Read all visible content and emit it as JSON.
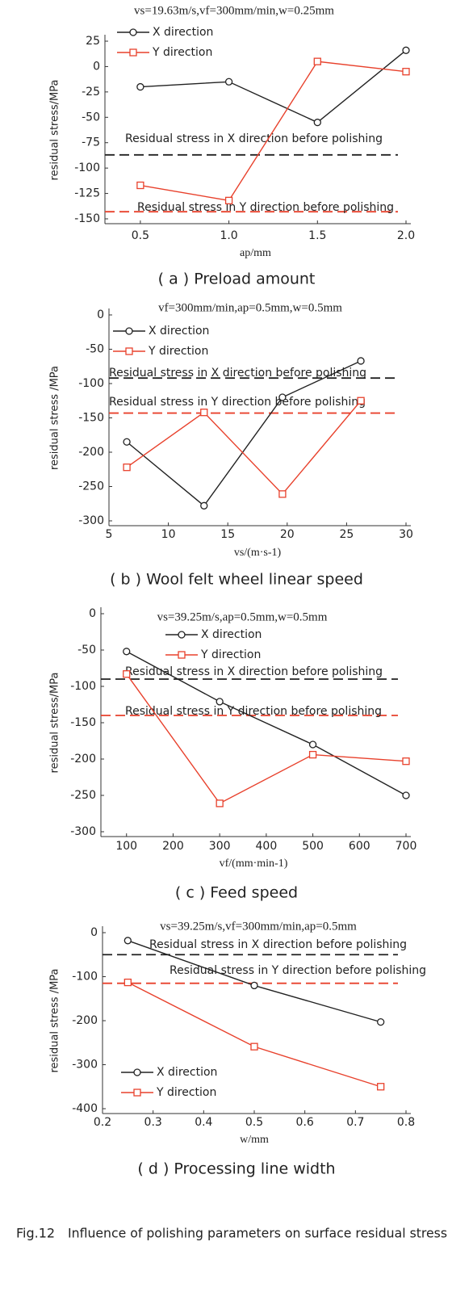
{
  "chart_data": [
    {
      "type": "line",
      "title": "vs=19.63m/s,vf=300mm/min,w=0.25mm",
      "x_label": "ap/mm",
      "y_label": "residual stress/MPa",
      "caption": "( a ) Preload amount",
      "x": [
        0.5,
        1,
        1.5,
        2
      ],
      "xlim": [
        0.3,
        2.0
      ],
      "xticks": [
        0.5,
        {
          "value": 1,
          "label": "1.0"
        },
        1.5,
        {
          "value": 2,
          "label": "2.0"
        }
      ],
      "ylim": [
        -150,
        25
      ],
      "yticks": [
        25,
        0,
        -25,
        -50,
        -75,
        -100,
        -125,
        -150
      ],
      "legend": "upper left",
      "series": [
        {
          "name": "X direction",
          "color": "#222222",
          "marker": "circle",
          "values": [
            -20,
            -15,
            -55,
            16
          ]
        },
        {
          "name": "Y direction",
          "color": "#e8412c",
          "marker": "square",
          "values": [
            -117,
            -132,
            5,
            -5
          ]
        }
      ],
      "reference_lines": [
        {
          "label": "Residual stress in X direction before polishing",
          "value": -87,
          "color": "#222222"
        },
        {
          "label": "Residual stress in Y direction before polishing",
          "value": -143,
          "color": "#e8412c"
        }
      ]
    },
    {
      "type": "line",
      "title": "vf=300mm/min,ap=0.5mm,w=0.5mm",
      "x_label": "vs/(m·s-1)",
      "y_label": "residual stress /MPa",
      "caption": "( b ) Wool felt wheel linear speed",
      "x": [
        6.5,
        13,
        19.6,
        26.2
      ],
      "xlim": [
        5,
        30
      ],
      "xticks": [
        5,
        10,
        15,
        20,
        25,
        30
      ],
      "ylim": [
        -300,
        0
      ],
      "yticks": [
        0,
        -50,
        -100,
        -150,
        -200,
        -250,
        -300
      ],
      "legend": "upper left",
      "series": [
        {
          "name": "X direction",
          "color": "#222222",
          "marker": "circle",
          "values": [
            -185,
            -278,
            -120,
            -67
          ]
        },
        {
          "name": "Y direction",
          "color": "#e8412c",
          "marker": "square",
          "values": [
            -222,
            -142,
            -261,
            -125
          ]
        }
      ],
      "reference_lines": [
        {
          "label": "Residual stress in X direction before polishing",
          "value": -92,
          "color": "#222222"
        },
        {
          "label": "Residual stress in Y direction before polishing",
          "value": -143,
          "color": "#e8412c"
        }
      ]
    },
    {
      "type": "line",
      "title": "vs=39.25m/s,ap=0.5mm,w=0.5mm",
      "x_label": "vf/(mm·min-1)",
      "y_label": "residual stress/MPa",
      "caption": "( c ) Feed speed",
      "x": [
        100,
        300,
        500,
        700
      ],
      "xlim": [
        45,
        700
      ],
      "xticks": [
        100,
        200,
        300,
        400,
        500,
        600,
        700
      ],
      "ylim": [
        -300,
        0
      ],
      "yticks": [
        0,
        -50,
        -100,
        -150,
        -200,
        -250,
        -300
      ],
      "legend": "upper center",
      "series": [
        {
          "name": "X direction",
          "color": "#222222",
          "marker": "circle",
          "values": [
            -52,
            -121,
            -180,
            -250
          ]
        },
        {
          "name": "Y direction",
          "color": "#e8412c",
          "marker": "square",
          "values": [
            -83,
            -261,
            -194,
            -203
          ]
        }
      ],
      "reference_lines": [
        {
          "label": "Residual stress in X direction before polishing",
          "value": -90,
          "color": "#222222"
        },
        {
          "label": "Residual stress in Y direction before polishing",
          "value": -140,
          "color": "#e8412c"
        }
      ]
    },
    {
      "type": "line",
      "title": "vs=39.25m/s,vf=300mm/min,ap=0.5mm",
      "x_label": "w/mm",
      "y_label": "residual stress /MPa",
      "caption": "( d ) Processing line width",
      "x": [
        0.25,
        0.5,
        0.75
      ],
      "xlim": [
        0.2,
        0.8
      ],
      "xticks": [
        0.2,
        0.3,
        0.4,
        0.5,
        0.6,
        0.7,
        0.8
      ],
      "ylim": [
        -400,
        0
      ],
      "yticks": [
        0,
        -100,
        -200,
        -300,
        -400
      ],
      "legend": "lower left",
      "series": [
        {
          "name": "X direction",
          "color": "#222222",
          "marker": "circle",
          "values": [
            -18,
            -120,
            -203
          ]
        },
        {
          "name": "Y direction",
          "color": "#e8412c",
          "marker": "square",
          "values": [
            -113,
            -259,
            -350
          ]
        }
      ],
      "reference_lines": [
        {
          "label": "Residual stress in X direction before polishing",
          "value": -50,
          "color": "#222222"
        },
        {
          "label": "Residual stress in Y direction before polishing",
          "value": -115,
          "color": "#e8412c"
        }
      ]
    }
  ],
  "figure_caption": {
    "label": "Fig.12",
    "text": "Influence of polishing parameters on surface residual stress"
  }
}
